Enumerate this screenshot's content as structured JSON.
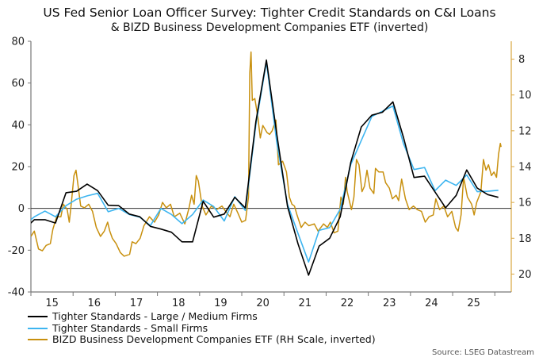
{
  "chart_data": {
    "type": "line",
    "title": "US Fed Senior Loan Officer Survey: Tighter Credit Standards on C&I Loans",
    "subtitle": "& BIZD Business Development Companies ETF (inverted)",
    "source": "Source: LSEG Datastream",
    "x_range": [
      2015.0,
      2026.39
    ],
    "x_ticks": [
      "15",
      "16",
      "17",
      "18",
      "19",
      "20",
      "21",
      "22",
      "23",
      "24",
      "25"
    ],
    "left_axis": {
      "range": [
        -40,
        80
      ],
      "ticks": [
        -40,
        -20,
        0,
        20,
        40,
        60,
        80
      ]
    },
    "right_axis": {
      "range": [
        7,
        21
      ],
      "inverted": true,
      "ticks": [
        8,
        10,
        12,
        14,
        16,
        18,
        20
      ],
      "color": "#d9a640"
    },
    "grid": false,
    "zero_line": true,
    "legend_placement": "bottom-left",
    "series": [
      {
        "name": "Tighter Standards - Large / Medium Firms",
        "axis": "left",
        "color": "#000000",
        "x": [
          "2014-11",
          "2015-02",
          "2015-05",
          "2015-08",
          "2015-11",
          "2016-02",
          "2016-05",
          "2016-08",
          "2016-11",
          "2017-02",
          "2017-05",
          "2017-08",
          "2017-11",
          "2018-02",
          "2018-05",
          "2018-08",
          "2018-11",
          "2019-02",
          "2019-05",
          "2019-08",
          "2019-11",
          "2020-02",
          "2020-05",
          "2020-08",
          "2020-11",
          "2021-02",
          "2021-05",
          "2021-08",
          "2021-11",
          "2022-02",
          "2022-05",
          "2022-08",
          "2022-11",
          "2023-02",
          "2023-05",
          "2023-08",
          "2023-11",
          "2024-02",
          "2024-05",
          "2024-08",
          "2024-11",
          "2025-02",
          "2025-05",
          "2025-08",
          "2025-11",
          "2026-02"
        ],
        "values": [
          -10,
          -5.4,
          -5.4,
          -7,
          7.5,
          8.2,
          11.6,
          8.5,
          1.5,
          1.3,
          -2.7,
          -4,
          -8.6,
          -9.9,
          -11.4,
          -16,
          -16,
          3.4,
          -4.2,
          -2.7,
          5.3,
          0.2,
          41.5,
          71,
          35,
          1,
          -17,
          -32,
          -18,
          -14.3,
          -4,
          22,
          39,
          44.6,
          46,
          51,
          34,
          14.8,
          15.4,
          7.8,
          0.3,
          6.2,
          18.4,
          9.7,
          6.6,
          5.3
        ]
      },
      {
        "name": "Tighter Standards - Small Firms",
        "axis": "left",
        "color": "#3db5f0",
        "x": [
          "2014-11",
          "2015-02",
          "2015-05",
          "2015-08",
          "2015-11",
          "2016-02",
          "2016-05",
          "2016-08",
          "2016-11",
          "2017-02",
          "2017-05",
          "2017-08",
          "2017-11",
          "2018-02",
          "2018-05",
          "2018-08",
          "2018-11",
          "2019-02",
          "2019-05",
          "2019-08",
          "2019-11",
          "2020-02",
          "2020-05",
          "2020-08",
          "2020-11",
          "2021-02",
          "2021-05",
          "2021-08",
          "2021-11",
          "2022-02",
          "2022-05",
          "2022-08",
          "2022-11",
          "2023-02",
          "2023-05",
          "2023-08",
          "2023-11",
          "2024-02",
          "2024-05",
          "2024-08",
          "2024-11",
          "2025-02",
          "2025-05",
          "2025-08",
          "2025-11",
          "2026-02"
        ],
        "values": [
          -8,
          -4,
          -1.3,
          -4,
          1.3,
          4.4,
          6,
          7.2,
          -1.6,
          0,
          -2.9,
          -4.2,
          -8.2,
          0,
          -2.9,
          -7.3,
          -2.9,
          4,
          0.9,
          -6,
          5.6,
          -1,
          40,
          70,
          31,
          2,
          -12,
          -25.7,
          -10.5,
          -9.2,
          -0.4,
          21,
          32.5,
          44,
          46.5,
          49,
          31,
          18.6,
          19.6,
          8.5,
          13.5,
          11,
          16,
          8,
          8.2,
          8.7
        ]
      },
      {
        "name": "BIZD Business Development Companies ETF (RH Scale, inverted)",
        "axis": "right",
        "color": "#c8900e",
        "x": [
          2015.0,
          2015.08,
          2015.18,
          2015.27,
          2015.36,
          2015.46,
          2015.52,
          2015.61,
          2015.71,
          2015.77,
          2015.86,
          2015.91,
          2015.96,
          2016.02,
          2016.07,
          2016.12,
          2016.18,
          2016.27,
          2016.37,
          2016.46,
          2016.55,
          2016.65,
          2016.74,
          2016.82,
          2016.87,
          2016.93,
          2017.02,
          2017.12,
          2017.21,
          2017.34,
          2017.4,
          2017.49,
          2017.59,
          2017.68,
          2017.81,
          2017.93,
          2018.03,
          2018.12,
          2018.21,
          2018.31,
          2018.4,
          2018.53,
          2018.65,
          2018.75,
          2018.81,
          2018.87,
          2018.92,
          2018.97,
          2019.06,
          2019.15,
          2019.28,
          2019.4,
          2019.53,
          2019.62,
          2019.72,
          2019.81,
          2019.91,
          2020.0,
          2020.09,
          2020.16,
          2020.19,
          2020.22,
          2020.25,
          2020.31,
          2020.38,
          2020.44,
          2020.5,
          2020.6,
          2020.66,
          2020.72,
          2020.81,
          2020.87,
          2020.97,
          2021.06,
          2021.13,
          2021.19,
          2021.25,
          2021.31,
          2021.41,
          2021.5,
          2021.59,
          2021.72,
          2021.81,
          2021.94,
          2022.03,
          2022.1,
          2022.19,
          2022.28,
          2022.35,
          2022.41,
          2022.46,
          2022.5,
          2022.6,
          2022.66,
          2022.72,
          2022.78,
          2022.85,
          2022.91,
          2022.97,
          2023.04,
          2023.13,
          2023.17,
          2023.25,
          2023.35,
          2023.41,
          2023.5,
          2023.57,
          2023.66,
          2023.72,
          2023.79,
          2023.88,
          2023.97,
          2024.07,
          2024.16,
          2024.26,
          2024.35,
          2024.44,
          2024.54,
          2024.6,
          2024.69,
          2024.79,
          2024.88,
          2024.98,
          2025.07,
          2025.13,
          2025.2,
          2025.26,
          2025.35,
          2025.45,
          2025.51,
          2025.57,
          2025.67,
          2025.73,
          2025.79,
          2025.85,
          2025.92,
          2025.98,
          2026.04,
          2026.09,
          2026.13,
          2026.15
        ],
        "values": [
          17.9,
          17.6,
          18.6,
          18.7,
          18.4,
          18.3,
          17.5,
          16.8,
          16.8,
          16.1,
          16.4,
          17.1,
          16.0,
          14.5,
          14.2,
          15.1,
          16.2,
          16.3,
          16.1,
          16.5,
          17.4,
          17.9,
          17.6,
          17.1,
          17.6,
          18.0,
          18.3,
          18.8,
          19.0,
          18.9,
          18.2,
          18.3,
          18.0,
          17.3,
          16.8,
          17.1,
          16.7,
          16.0,
          16.3,
          16.1,
          16.8,
          16.6,
          17.2,
          16.3,
          15.6,
          16.1,
          14.5,
          14.8,
          16.2,
          16.7,
          16.2,
          16.4,
          16.2,
          16.5,
          16.8,
          16.1,
          16.6,
          17.1,
          17.0,
          15.7,
          8.8,
          7.6,
          10.3,
          10.2,
          11.2,
          12.4,
          11.7,
          12.1,
          12.2,
          12.0,
          11.4,
          13.9,
          13.7,
          14.3,
          15.7,
          16.1,
          16.2,
          16.7,
          17.4,
          17.1,
          17.3,
          17.2,
          17.6,
          17.2,
          17.4,
          17.1,
          17.7,
          17.6,
          15.7,
          16.1,
          14.6,
          15.4,
          16.4,
          15.7,
          13.6,
          13.9,
          15.4,
          15.1,
          14.2,
          15.2,
          15.5,
          14.1,
          14.3,
          14.3,
          14.9,
          15.2,
          15.8,
          15.6,
          15.9,
          14.7,
          15.8,
          16.4,
          16.2,
          16.4,
          16.5,
          17.1,
          16.8,
          16.7,
          15.8,
          16.4,
          16.2,
          16.8,
          16.5,
          17.4,
          17.6,
          16.7,
          14.6,
          15.7,
          16.1,
          16.7,
          16.0,
          15.4,
          13.6,
          14.2,
          13.9,
          14.5,
          14.3,
          14.6,
          13.3,
          12.7,
          12.9
        ]
      }
    ]
  }
}
